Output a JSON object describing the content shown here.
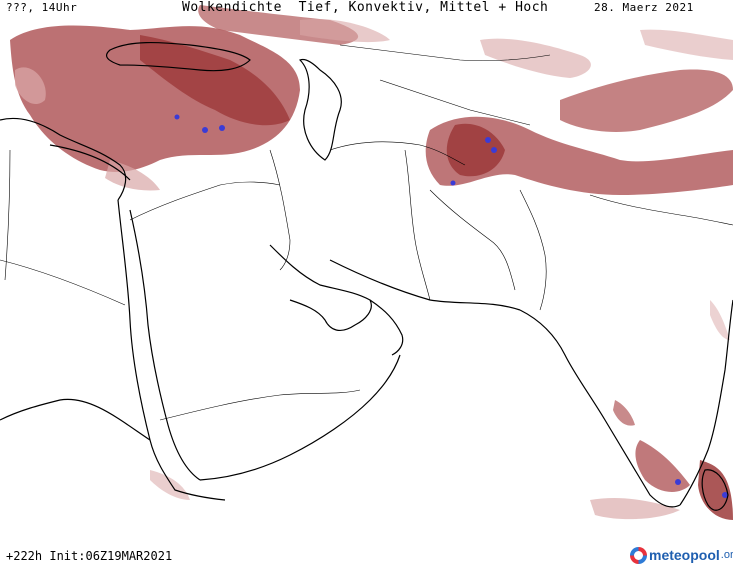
{
  "header": {
    "left": "???, 14Uhr",
    "center": "Wolkendichte  Tief, Konvektiv, Mittel + Hoch",
    "right": "28. Maerz 2021"
  },
  "footer": {
    "run_info": "+222h Init:06Z19MAR2021"
  },
  "logo": {
    "text": "meteopool",
    "suffix": ".org",
    "icon": "meteopool-logo-icon"
  },
  "colors": {
    "cloud_dense": "#9c3a3a",
    "cloud_medium": "#b0585a",
    "cloud_light": "#d9a6a6",
    "convective": "#3b3bd6",
    "coastline": "#000000",
    "logo_blue": "#1f5fb0",
    "logo_red": "#e8323c"
  }
}
